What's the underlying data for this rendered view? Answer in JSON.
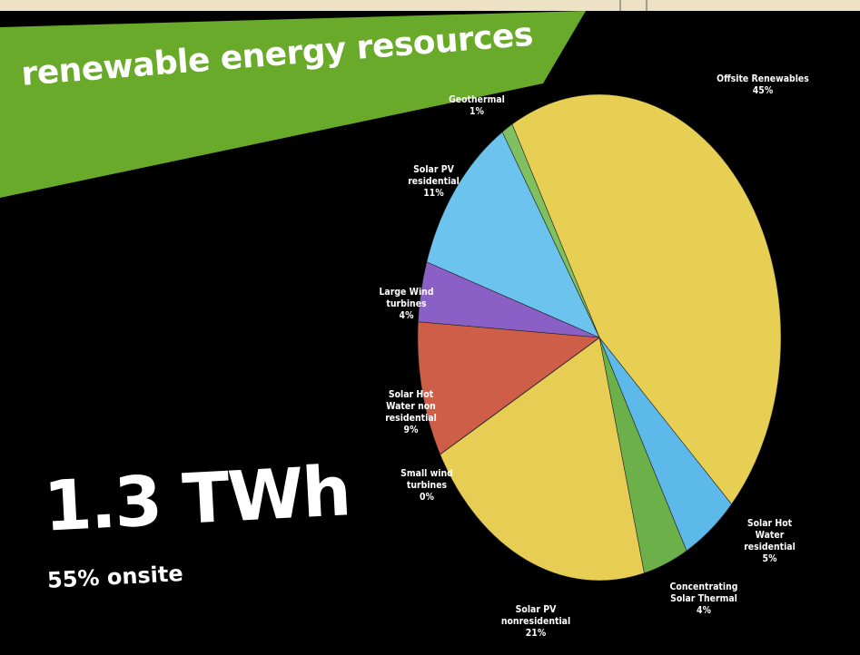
{
  "chart_data": {
    "type": "pie",
    "title": "renewable energy resources",
    "annotations": [
      "1.3 TWh",
      "55% onsite"
    ],
    "categories": [
      "Offsite Renewables",
      "Solar Hot Water residential",
      "Concentrating Solar Thermal",
      "Solar PV nonresidential",
      "Small wind turbines",
      "Solar Hot Water non residential",
      "Large Wind turbines",
      "Solar PV residential",
      "Geothermal"
    ],
    "values": [
      45,
      5,
      4,
      21,
      0,
      9,
      4,
      11,
      1
    ],
    "value_labels": [
      "45%",
      "5%",
      "4%",
      "21%",
      "0%",
      "9%",
      "4%",
      "11%",
      "1%"
    ],
    "colors": [
      "#e6cf52",
      "#5cb9ea",
      "#6cb04a",
      "#e8cd55",
      "#444444",
      "#cf5e48",
      "#8a60c6",
      "#6cc4ee",
      "#80c060"
    ]
  }
}
